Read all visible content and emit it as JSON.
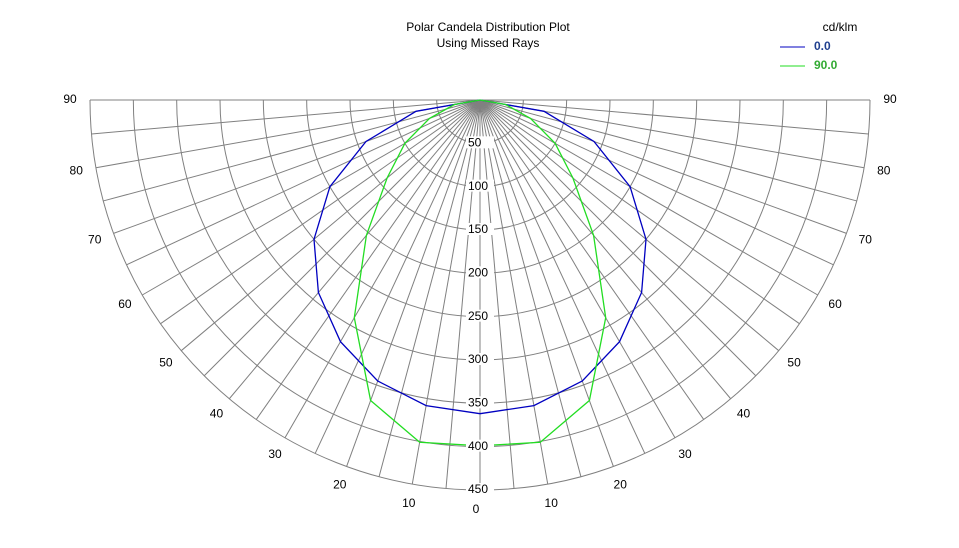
{
  "chart_data": {
    "type": "polar",
    "title": "Polar Candela Distribution Plot",
    "subtitle": "Using Missed Rays",
    "legend_title": "cd/klm",
    "angles": [
      0,
      10,
      20,
      30,
      40,
      50,
      60,
      70,
      80,
      90
    ],
    "series": [
      {
        "name": "0.0",
        "color": "#0000c0",
        "label_color": "#1f3f8f",
        "values": [
          362,
          358,
          345,
          322,
          290,
          250,
          200,
          140,
          75,
          0
        ]
      },
      {
        "name": "90.0",
        "color": "#22dd22",
        "label_color": "#33aa33",
        "values": [
          399,
          401,
          369,
          290,
          204,
          140,
          100,
          62,
          30,
          0
        ]
      }
    ],
    "ylim": [
      0,
      450
    ],
    "yticks": [
      50,
      100,
      150,
      200,
      250,
      300,
      350,
      400,
      450
    ],
    "xlim": [
      0,
      90
    ],
    "xticks": [
      0,
      10,
      20,
      30,
      40,
      50,
      60,
      70,
      80,
      90
    ],
    "angle_grid": [
      0,
      5,
      10,
      15,
      20,
      25,
      30,
      35,
      40,
      45,
      50,
      55,
      60,
      65,
      70,
      75,
      80,
      85,
      90
    ],
    "legend": "upper right"
  }
}
